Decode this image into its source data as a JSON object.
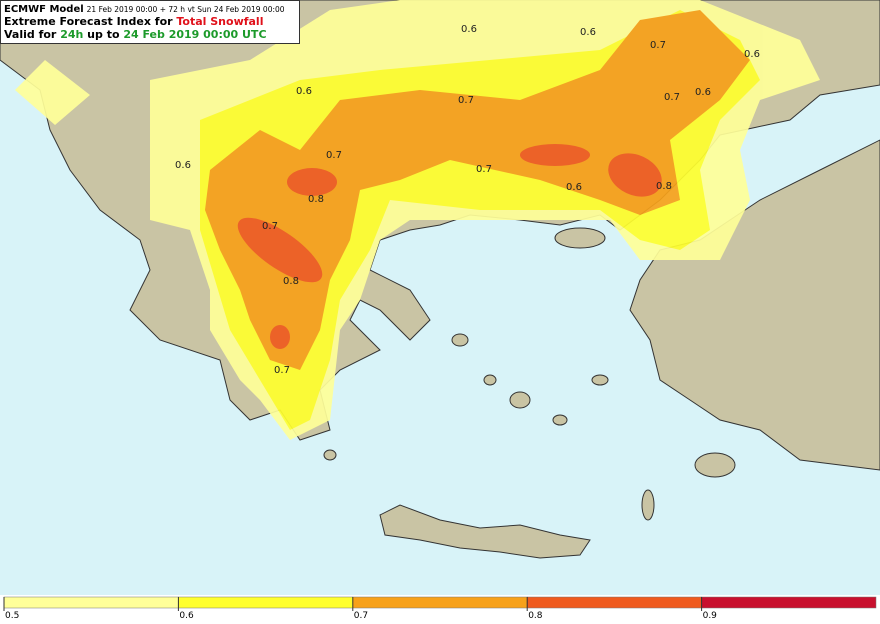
{
  "header": {
    "model": "ECMWF Model",
    "run": "21 Feb 2019 00:00 + 72 h vt Sun 24 Feb 2019 00:00",
    "title_prefix": "Extreme Forecast Index for ",
    "title_param": "Total Snowfall",
    "valid_prefix": "Valid for ",
    "valid_period": "24h",
    "valid_mid": " up to ",
    "valid_time": "24 Feb 2019 00:00 UTC"
  },
  "contour_labels": [
    "0.6",
    "0.6",
    "0.6",
    "0.6",
    "0.6",
    "0.6",
    "0.6",
    "0.7",
    "0.7",
    "0.7",
    "0.7",
    "0.7",
    "0.7",
    "0.7",
    "0.8",
    "0.8",
    "0.8"
  ],
  "colorbar": {
    "ticks": [
      0.5,
      0.6,
      0.7,
      0.8,
      0.9
    ],
    "colors": [
      "#ffff99",
      "#ffff2e",
      "#f7a11a",
      "#ef5a1e",
      "#c8102e"
    ]
  }
}
